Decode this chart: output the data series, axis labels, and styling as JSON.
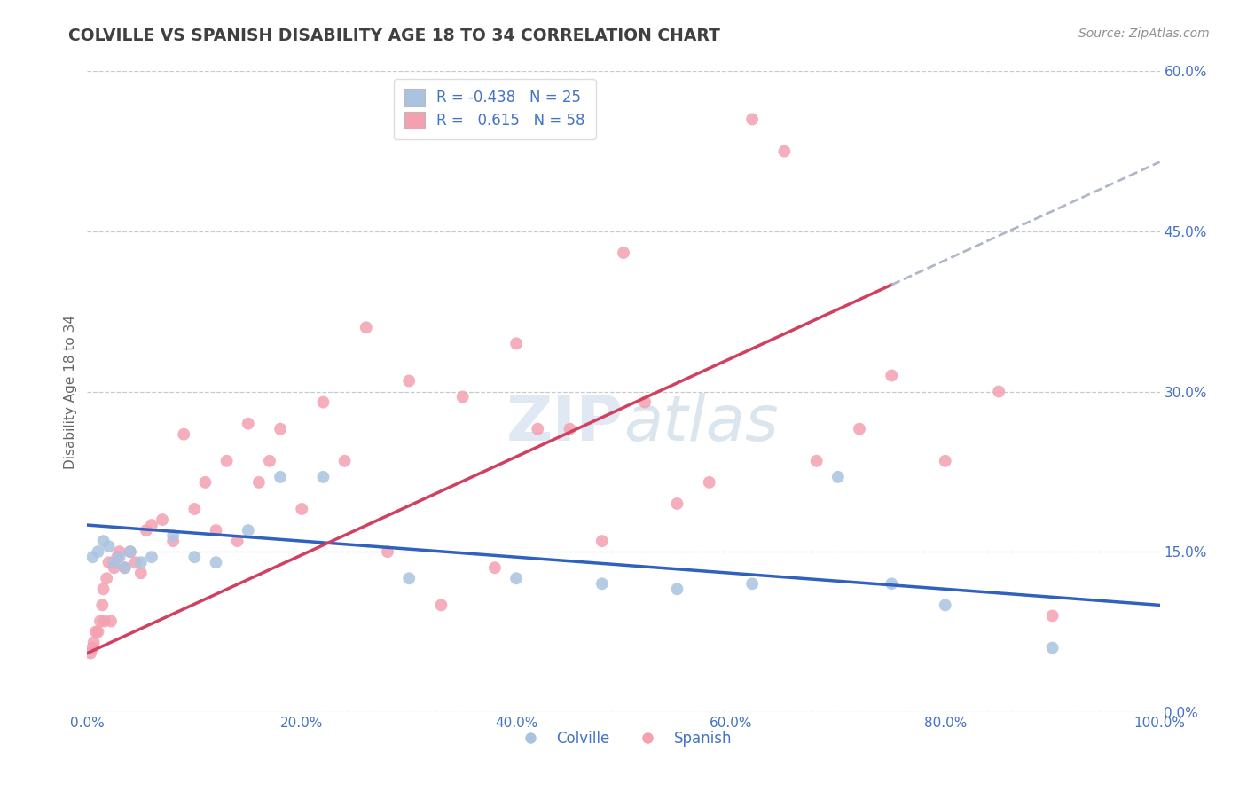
{
  "title": "COLVILLE VS SPANISH DISABILITY AGE 18 TO 34 CORRELATION CHART",
  "source": "Source: ZipAtlas.com",
  "ylabel": "Disability Age 18 to 34",
  "colville_R": -0.438,
  "colville_N": 25,
  "spanish_R": 0.615,
  "spanish_N": 58,
  "xlim": [
    0,
    100
  ],
  "ylim": [
    0,
    60
  ],
  "ytick_vals": [
    0,
    15,
    30,
    45,
    60
  ],
  "xtick_vals": [
    0,
    20,
    40,
    60,
    80,
    100
  ],
  "colville_color": "#aac4e0",
  "spanish_color": "#f4a0b0",
  "colville_line_color": "#3060c0",
  "spanish_line_color": "#d04060",
  "trend_ext_color": "#b0b8c8",
  "background_color": "#ffffff",
  "grid_color": "#c8c8d0",
  "title_color": "#404040",
  "axis_label_color": "#4472c4",
  "colville_x": [
    0.5,
    1.0,
    1.5,
    2.0,
    2.5,
    3.0,
    3.5,
    4.0,
    5.0,
    6.0,
    8.0,
    10.0,
    12.0,
    15.0,
    18.0,
    22.0,
    30.0,
    40.0,
    48.0,
    55.0,
    62.0,
    70.0,
    75.0,
    80.0,
    90.0
  ],
  "colville_y": [
    14.5,
    15.0,
    16.0,
    15.5,
    14.0,
    14.5,
    13.5,
    15.0,
    14.0,
    14.5,
    16.5,
    14.5,
    14.0,
    17.0,
    22.0,
    22.0,
    12.5,
    12.5,
    12.0,
    11.5,
    12.0,
    22.0,
    12.0,
    10.0,
    6.0
  ],
  "spanish_x": [
    0.3,
    0.5,
    0.6,
    0.8,
    1.0,
    1.2,
    1.4,
    1.5,
    1.6,
    1.8,
    2.0,
    2.2,
    2.5,
    2.8,
    3.0,
    3.5,
    4.0,
    4.5,
    5.0,
    5.5,
    6.0,
    7.0,
    8.0,
    9.0,
    10.0,
    11.0,
    12.0,
    13.0,
    14.0,
    15.0,
    16.0,
    17.0,
    18.0,
    20.0,
    22.0,
    24.0,
    26.0,
    28.0,
    30.0,
    33.0,
    35.0,
    38.0,
    40.0,
    42.0,
    45.0,
    48.0,
    50.0,
    52.0,
    55.0,
    58.0,
    62.0,
    65.0,
    68.0,
    72.0,
    75.0,
    80.0,
    85.0,
    90.0
  ],
  "spanish_y": [
    5.5,
    6.0,
    6.5,
    7.5,
    7.5,
    8.5,
    10.0,
    11.5,
    8.5,
    12.5,
    14.0,
    8.5,
    13.5,
    14.5,
    15.0,
    13.5,
    15.0,
    14.0,
    13.0,
    17.0,
    17.5,
    18.0,
    16.0,
    26.0,
    19.0,
    21.5,
    17.0,
    23.5,
    16.0,
    27.0,
    21.5,
    23.5,
    26.5,
    19.0,
    29.0,
    23.5,
    36.0,
    15.0,
    31.0,
    10.0,
    29.5,
    13.5,
    34.5,
    26.5,
    26.5,
    16.0,
    43.0,
    29.0,
    19.5,
    21.5,
    55.5,
    52.5,
    23.5,
    26.5,
    31.5,
    23.5,
    30.0,
    9.0
  ]
}
